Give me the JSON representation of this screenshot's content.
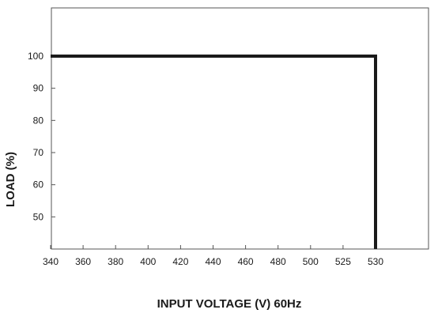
{
  "chart_data": {
    "type": "line",
    "title": "",
    "xlabel": "INPUT VOLTAGE (V) 60Hz",
    "ylabel": "LOAD (%)",
    "x_ticks": [
      "340",
      "360",
      "380",
      "400",
      "420",
      "440",
      "460",
      "480",
      "500",
      "525",
      "530"
    ],
    "y_ticks": [
      50,
      60,
      70,
      80,
      90,
      100
    ],
    "ylim": [
      40,
      115
    ],
    "grid": false,
    "series": [
      {
        "points": [
          {
            "x": "340",
            "y": 100
          },
          {
            "x": "530",
            "y": 100
          },
          {
            "x": "530",
            "y": 40
          }
        ]
      }
    ],
    "colors": {
      "line": "#1a1a1a",
      "frame": "#555555"
    }
  }
}
